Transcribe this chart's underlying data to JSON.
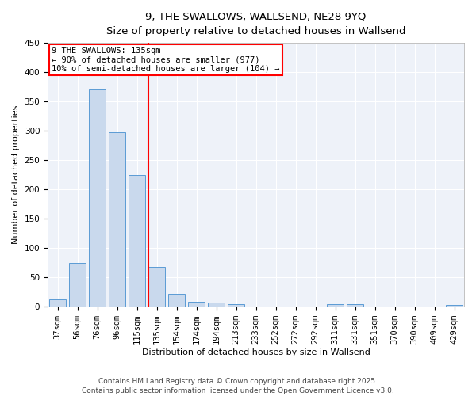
{
  "title1": "9, THE SWALLOWS, WALLSEND, NE28 9YQ",
  "title2": "Size of property relative to detached houses in Wallsend",
  "xlabel": "Distribution of detached houses by size in Wallsend",
  "ylabel": "Number of detached properties",
  "bar_color": "#c9d9ed",
  "bar_edge_color": "#5b9bd5",
  "categories": [
    "37sqm",
    "56sqm",
    "76sqm",
    "96sqm",
    "115sqm",
    "135sqm",
    "154sqm",
    "174sqm",
    "194sqm",
    "213sqm",
    "233sqm",
    "252sqm",
    "272sqm",
    "292sqm",
    "311sqm",
    "331sqm",
    "351sqm",
    "370sqm",
    "390sqm",
    "409sqm",
    "429sqm"
  ],
  "values": [
    13,
    75,
    370,
    298,
    225,
    68,
    22,
    8,
    7,
    5,
    0,
    0,
    0,
    0,
    4,
    4,
    0,
    0,
    0,
    0,
    3
  ],
  "ylim": [
    0,
    450
  ],
  "yticks": [
    0,
    50,
    100,
    150,
    200,
    250,
    300,
    350,
    400,
    450
  ],
  "red_line_index": 5,
  "annotation_title": "9 THE SWALLOWS: 135sqm",
  "annotation_line1": "← 90% of detached houses are smaller (977)",
  "annotation_line2": "10% of semi-detached houses are larger (104) →",
  "footer1": "Contains HM Land Registry data © Crown copyright and database right 2025.",
  "footer2": "Contains public sector information licensed under the Open Government Licence v3.0.",
  "background_color": "#eef2f9",
  "grid_color": "#ffffff",
  "title1_fontsize": 9.5,
  "title2_fontsize": 8.5,
  "axis_label_fontsize": 8,
  "tick_fontsize": 7.5,
  "annotation_fontsize": 7.5,
  "footer_fontsize": 6.5
}
